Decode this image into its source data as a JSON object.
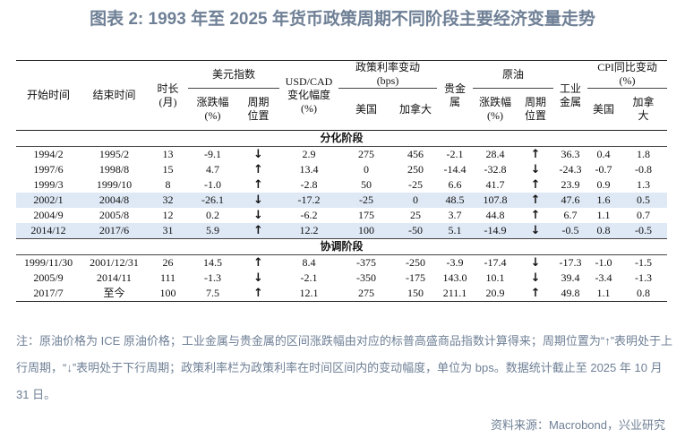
{
  "title": "图表 2:  1993 年至 2025 年货币政策周期不同阶段主要经济变量走势",
  "table": {
    "header": {
      "start": "开始时间",
      "end": "结束时间",
      "duration": [
        "时长",
        "(月)"
      ],
      "dxy": {
        "label": "美元指数",
        "change": [
          "涨跌幅",
          "(%)"
        ],
        "position": [
          "周期",
          "位置"
        ]
      },
      "usdcad": [
        "USD/CAD",
        "变化幅度",
        "(%)"
      ],
      "policy_rate": {
        "label": [
          "政策利率变动",
          "(bps)"
        ],
        "us": "美国",
        "ca": "加拿大"
      },
      "precious": [
        "贵金",
        "属"
      ],
      "oil": {
        "label": "原油",
        "change": [
          "涨跌幅",
          "(%)"
        ],
        "position": [
          "周期",
          "位置"
        ]
      },
      "industrial": [
        "工业",
        "金属"
      ],
      "cpi": {
        "label": [
          "CPI同比变动",
          "(%)"
        ],
        "us": "美国",
        "ca": [
          "加拿",
          "大"
        ]
      }
    },
    "sections": [
      {
        "title": "分化阶段",
        "rows": [
          [
            "1994/2",
            "1995/2",
            "13",
            "-9.1",
            "↓",
            "2.9",
            "275",
            "456",
            "-2.1",
            "28.4",
            "↑",
            "36.3",
            "0.4",
            "1.8"
          ],
          [
            "1997/6",
            "1998/8",
            "15",
            "4.7",
            "↑",
            "13.4",
            "0",
            "250",
            "-14.4",
            "-32.8",
            "↓",
            "-24.3",
            "-0.7",
            "-0.8"
          ],
          [
            "1999/3",
            "1999/10",
            "8",
            "-1.0",
            "↑",
            "-2.8",
            "50",
            "-25",
            "6.6",
            "41.7",
            "↑",
            "23.9",
            "0.9",
            "1.3"
          ],
          [
            "2002/1",
            "2004/8",
            "32",
            "-26.1",
            "↓",
            "-17.2",
            "-25",
            "0",
            "48.5",
            "107.8",
            "↑",
            "47.6",
            "1.6",
            "0.5"
          ],
          [
            "2004/9",
            "2005/8",
            "12",
            "0.2",
            "↓",
            "-6.2",
            "175",
            "25",
            "3.7",
            "44.8",
            "↑",
            "6.7",
            "1.1",
            "0.7"
          ],
          [
            "2014/12",
            "2017/6",
            "31",
            "5.9",
            "↑",
            "12.2",
            "100",
            "-50",
            "5.1",
            "-14.9",
            "↓",
            "-0.5",
            "0.8",
            "-0.5"
          ]
        ]
      },
      {
        "title": "协调阶段",
        "rows": [
          [
            "1999/11/30",
            "2001/12/31",
            "26",
            "14.5",
            "↑",
            "8.4",
            "-375",
            "-250",
            "-3.9",
            "-17.4",
            "↓",
            "-17.3",
            "-1.0",
            "-1.5"
          ],
          [
            "2005/9",
            "2014/11",
            "111",
            "-1.3",
            "↓",
            "-2.1",
            "-350",
            "-175",
            "143.0",
            "10.1",
            "↓",
            "39.4",
            "-3.4",
            "-1.3"
          ],
          [
            "2017/7",
            "至今",
            "100",
            "7.5",
            "↑",
            "12.1",
            "275",
            "150",
            "211.1",
            "20.9",
            "↑",
            "49.8",
            "1.1",
            "0.8"
          ]
        ]
      }
    ]
  },
  "note": "注：原油价格为 ICE 原油价格；工业金属与贵金属的区间涨跌幅由对应的标普高盛商品指数计算得来；周期位置为“↑”表明处于上行周期，“↓”表明处于下行周期；政策利率栏为政策利率在时间区间内的变动幅度，单位为 bps。数据统计截止至 2025 年 10 月 31 日。",
  "source": "资料来源：Macrobond，兴业研究"
}
